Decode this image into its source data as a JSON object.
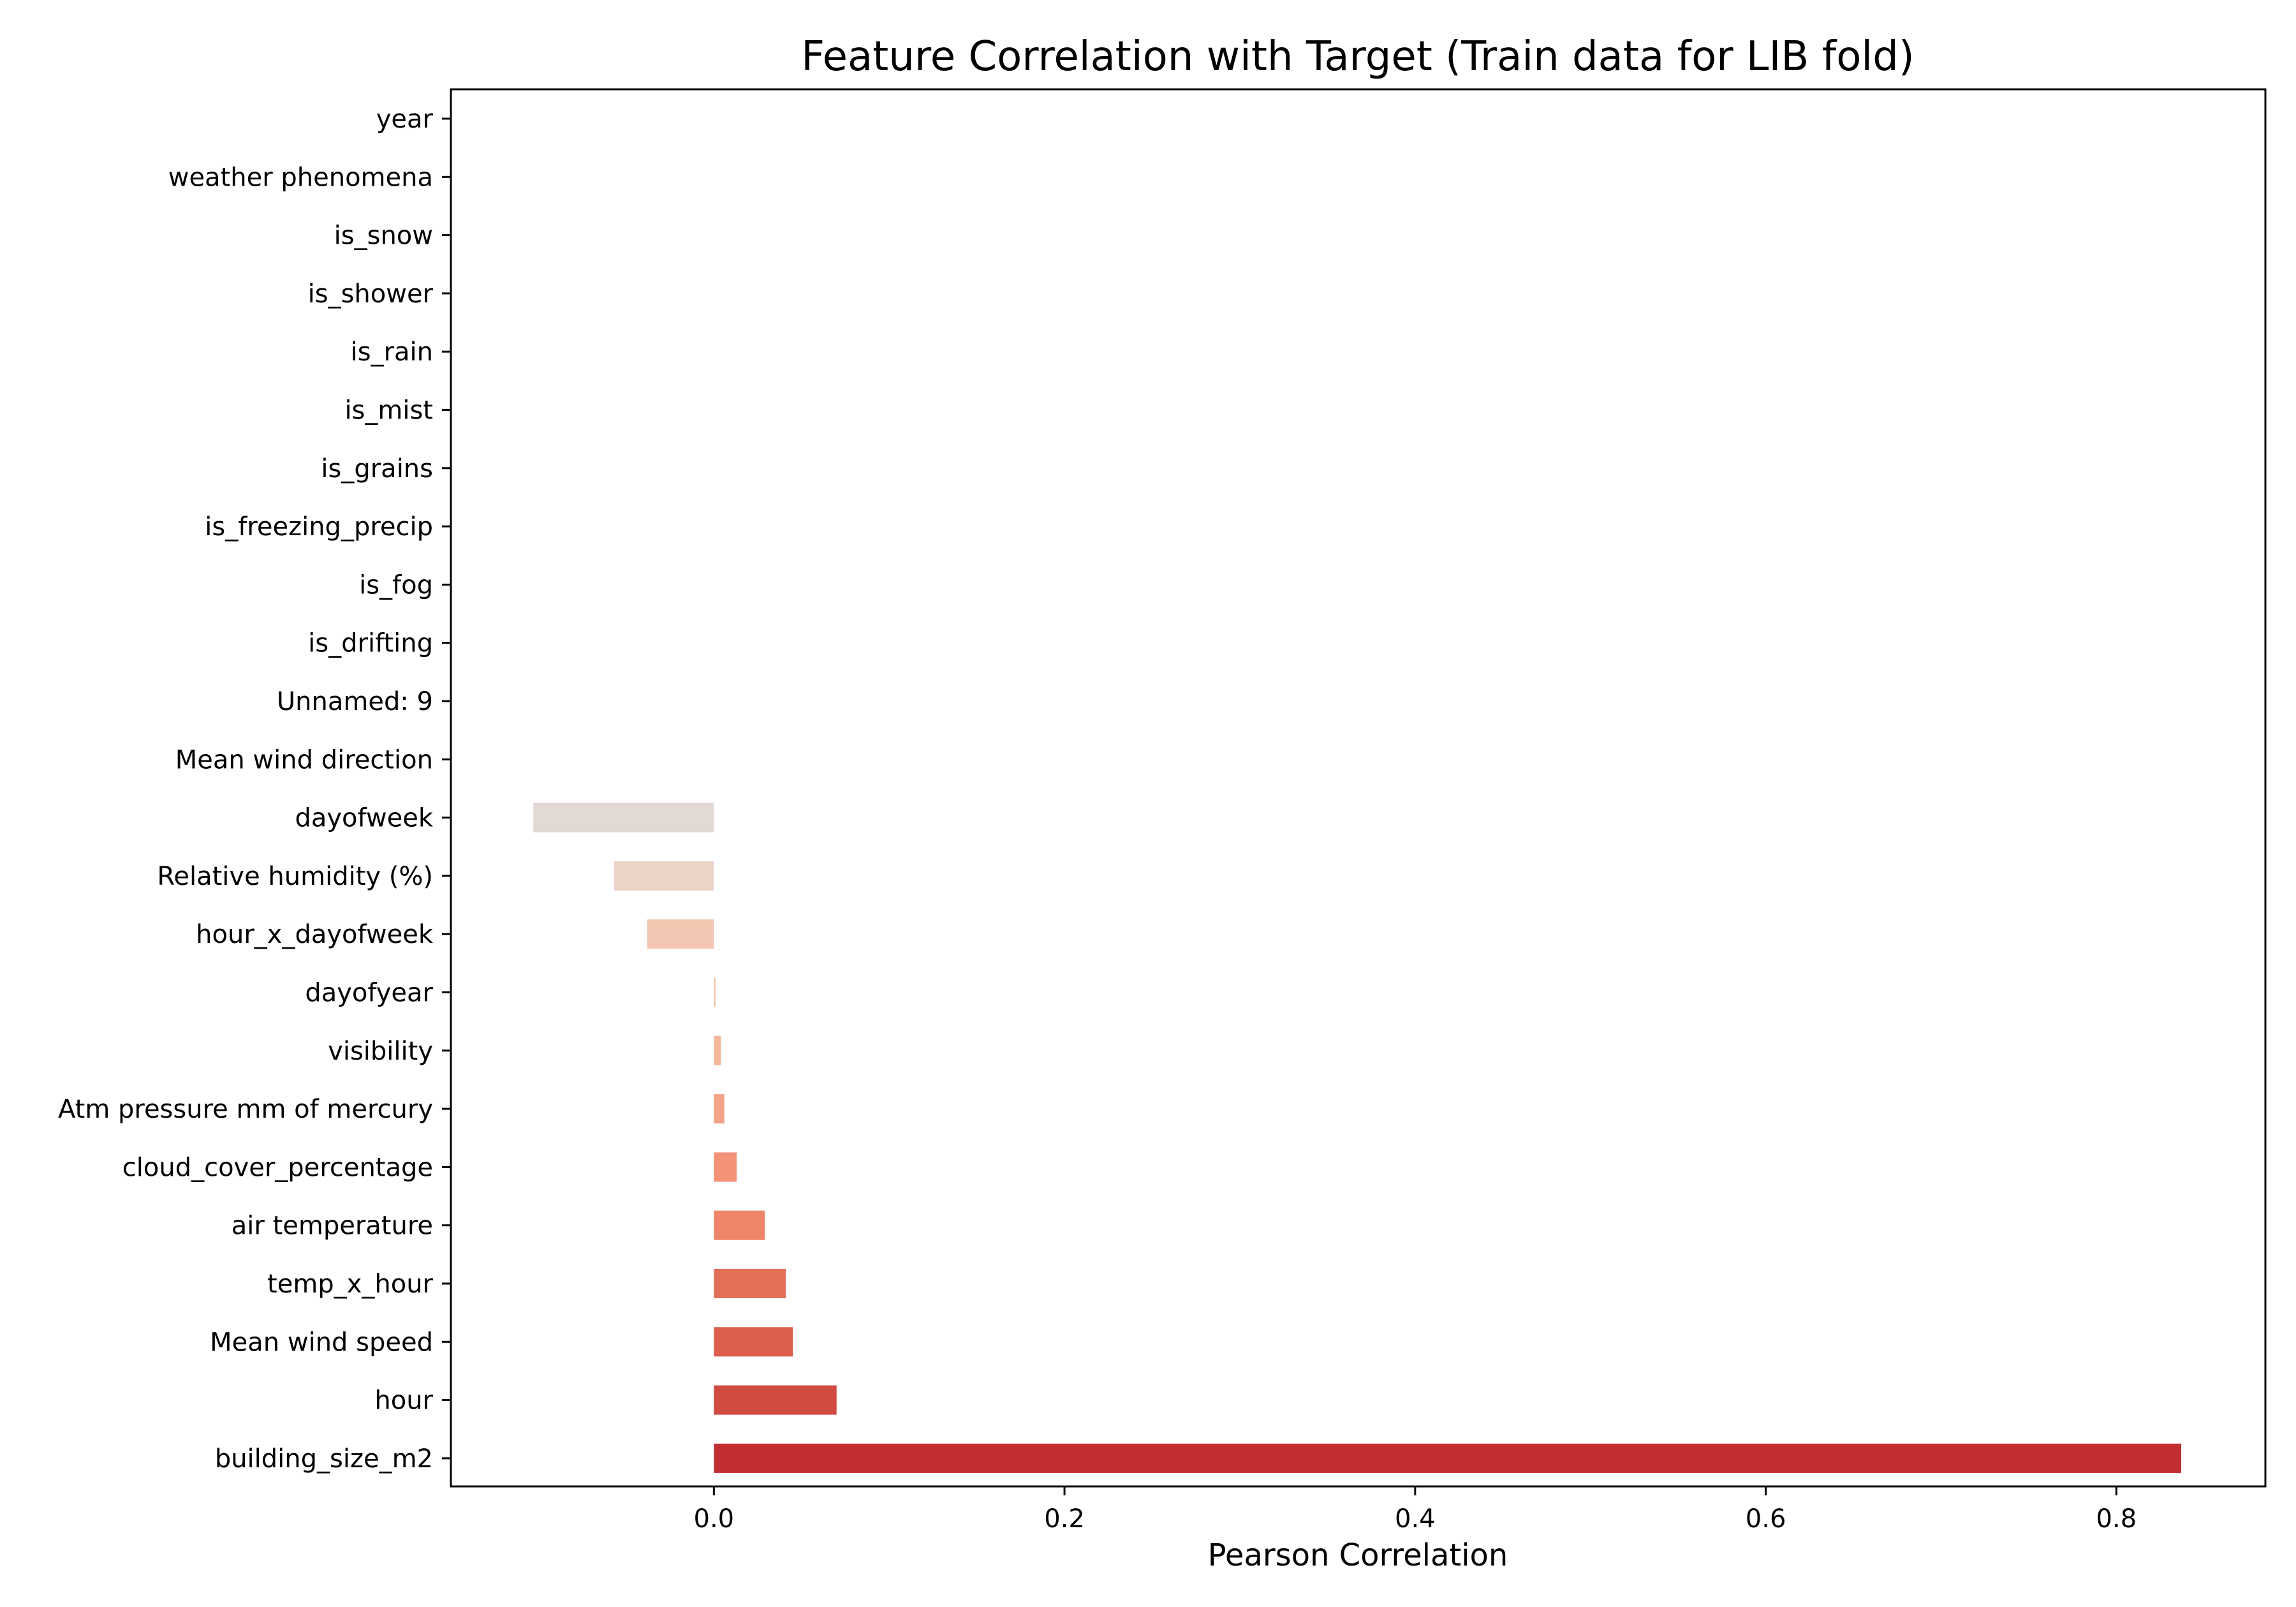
{
  "chart_data": {
    "type": "bar",
    "orientation": "horizontal",
    "title": "Feature Correlation with Target (Train data for LIB fold)",
    "xlabel": "Pearson Correlation",
    "ylabel": "",
    "xlim": [
      -0.15,
      0.885
    ],
    "xticks": [
      {
        "value": 0.0,
        "label": "0.0"
      },
      {
        "value": 0.2,
        "label": "0.2"
      },
      {
        "value": 0.4,
        "label": "0.4"
      },
      {
        "value": 0.6,
        "label": "0.6"
      },
      {
        "value": 0.8,
        "label": "0.8"
      }
    ],
    "grid": false,
    "legend": "none",
    "categories": [
      "year",
      "weather phenomena",
      "is_snow",
      "is_shower",
      "is_rain",
      "is_mist",
      "is_grains",
      "is_freezing_precip",
      "is_fog",
      "is_drifting",
      "Unnamed: 9",
      "Mean wind direction",
      "dayofweek",
      "Relative humidity (%)",
      "hour_x_dayofweek",
      "dayofyear",
      "visibility",
      "Atm pressure mm of mercury",
      "cloud_cover_percentage",
      "air temperature",
      "temp_x_hour",
      "Mean wind speed",
      "hour",
      "building_size_m2"
    ],
    "values": [
      0,
      0,
      0,
      0,
      0,
      0,
      0,
      0,
      0,
      0,
      0,
      0,
      -0.103,
      -0.057,
      -0.038,
      0.001,
      0.004,
      0.006,
      0.013,
      0.029,
      0.041,
      0.045,
      0.07,
      0.837
    ],
    "colors": [
      "#dddcdc",
      "#dddcdc",
      "#dddcdc",
      "#dddcdc",
      "#dddcdc",
      "#dddcdc",
      "#dddcdc",
      "#dddcdc",
      "#dddcdc",
      "#dddcdc",
      "#dddcdc",
      "#dddcdc",
      "#e2d9d5",
      "#ead4c8",
      "#f3c7b1",
      "#f8c6ae",
      "#f5b69b",
      "#f4a486",
      "#f39277",
      "#ee8468",
      "#e4705a",
      "#db5e4c",
      "#d14b41",
      "#c22e32"
    ]
  }
}
